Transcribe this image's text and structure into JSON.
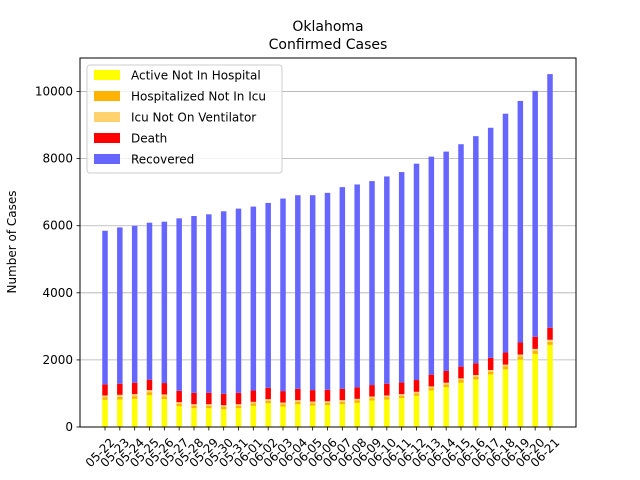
{
  "chart_data": {
    "type": "bar",
    "stacked": true,
    "title": "Oklahoma",
    "subtitle": "Confirmed Cases",
    "xlabel": "",
    "ylabel": "Number of Cases",
    "ylim": [
      0,
      11000
    ],
    "yticks": [
      0,
      2000,
      4000,
      6000,
      8000,
      10000
    ],
    "grid": "horizontal",
    "legend_position": "top-left",
    "categories": [
      "05-22",
      "05-23",
      "05-24",
      "05-25",
      "05-26",
      "05-27",
      "05-28",
      "05-29",
      "05-30",
      "05-31",
      "06-01",
      "06-02",
      "06-03",
      "06-04",
      "06-05",
      "06-06",
      "06-07",
      "06-08",
      "06-09",
      "06-10",
      "06-11",
      "06-12",
      "06-13",
      "06-14",
      "06-15",
      "06-16",
      "06-17",
      "06-18",
      "06-19",
      "06-20",
      "06-21"
    ],
    "series": [
      {
        "name": "Active Not In Hospital",
        "color": "#ffff00",
        "values": [
          810,
          820,
          840,
          950,
          830,
          620,
          560,
          560,
          530,
          560,
          630,
          710,
          610,
          680,
          640,
          650,
          680,
          720,
          790,
          820,
          860,
          930,
          1090,
          1190,
          1320,
          1420,
          1570,
          1720,
          2010,
          2180,
          2450
        ]
      },
      {
        "name": "Hospitalized Not In Icu",
        "color": "#ffb300",
        "values": [
          70,
          80,
          80,
          90,
          80,
          70,
          70,
          70,
          70,
          70,
          70,
          70,
          70,
          70,
          70,
          70,
          70,
          70,
          70,
          70,
          70,
          70,
          70,
          80,
          80,
          80,
          80,
          90,
          90,
          90,
          90
        ]
      },
      {
        "name": "Icu Not On Ventilator",
        "color": "#ffd26e",
        "values": [
          60,
          60,
          60,
          60,
          60,
          50,
          50,
          50,
          50,
          50,
          50,
          50,
          50,
          50,
          50,
          50,
          50,
          50,
          50,
          50,
          50,
          50,
          50,
          50,
          50,
          50,
          50,
          50,
          60,
          60,
          60
        ]
      },
      {
        "name": "Death",
        "color": "#ff0000",
        "values": [
          330,
          330,
          340,
          310,
          340,
          340,
          340,
          340,
          340,
          340,
          340,
          340,
          340,
          340,
          340,
          340,
          340,
          340,
          340,
          350,
          350,
          350,
          350,
          350,
          350,
          350,
          360,
          360,
          360,
          360,
          360
        ]
      },
      {
        "name": "Recovered",
        "color": "#6666ff",
        "values": [
          4580,
          4660,
          4680,
          4680,
          4810,
          5140,
          5270,
          5320,
          5440,
          5490,
          5480,
          5510,
          5740,
          5770,
          5810,
          5870,
          6010,
          6050,
          6080,
          6180,
          6270,
          6450,
          6500,
          6540,
          6630,
          6770,
          6860,
          7120,
          7200,
          7330,
          7560
        ]
      }
    ]
  }
}
